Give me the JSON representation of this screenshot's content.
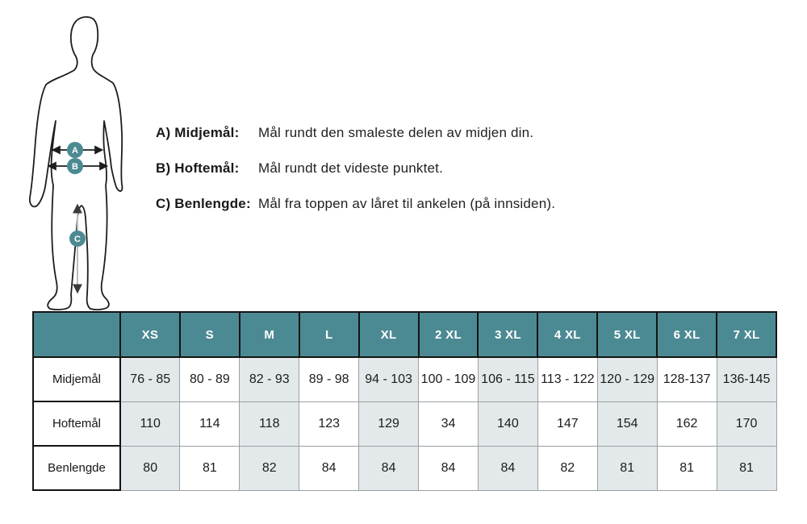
{
  "colors": {
    "teal": "#4C8A93",
    "cell_shaded": "#E3E8EA",
    "grid": "#9AA0A4",
    "ink": "#1A1A1A"
  },
  "diagram": {
    "markers": [
      {
        "label": "A"
      },
      {
        "label": "B"
      },
      {
        "label": "C"
      }
    ],
    "definitions": [
      {
        "label": "A) Midjemål:",
        "description": "Mål rundt den smaleste delen av midjen din."
      },
      {
        "label": "B) Hoftemål:",
        "description": "Mål rundt det videste punktet."
      },
      {
        "label": "C) Benlengde:",
        "description": "Mål fra toppen av låret til ankelen (på innsiden)."
      }
    ]
  },
  "table": {
    "columns": [
      "XS",
      "S",
      "M",
      "L",
      "XL",
      "2 XL",
      "3 XL",
      "4 XL",
      "5 XL",
      "6 XL",
      "7 XL"
    ],
    "rows": [
      {
        "label": "Midjemål",
        "values": [
          "76 - 85",
          "80 - 89",
          "82 - 93",
          "89 - 98",
          "94 - 103",
          "100 - 109",
          "106 - 115",
          "113 - 122",
          "120 - 129",
          "128-137",
          "136-145"
        ]
      },
      {
        "label": "Hoftemål",
        "values": [
          "110",
          "114",
          "118",
          "123",
          "129",
          "34",
          "140",
          "147",
          "154",
          "162",
          "170"
        ]
      },
      {
        "label": "Benlengde",
        "values": [
          "80",
          "81",
          "82",
          "84",
          "84",
          "84",
          "84",
          "82",
          "81",
          "81",
          "81"
        ]
      }
    ]
  }
}
